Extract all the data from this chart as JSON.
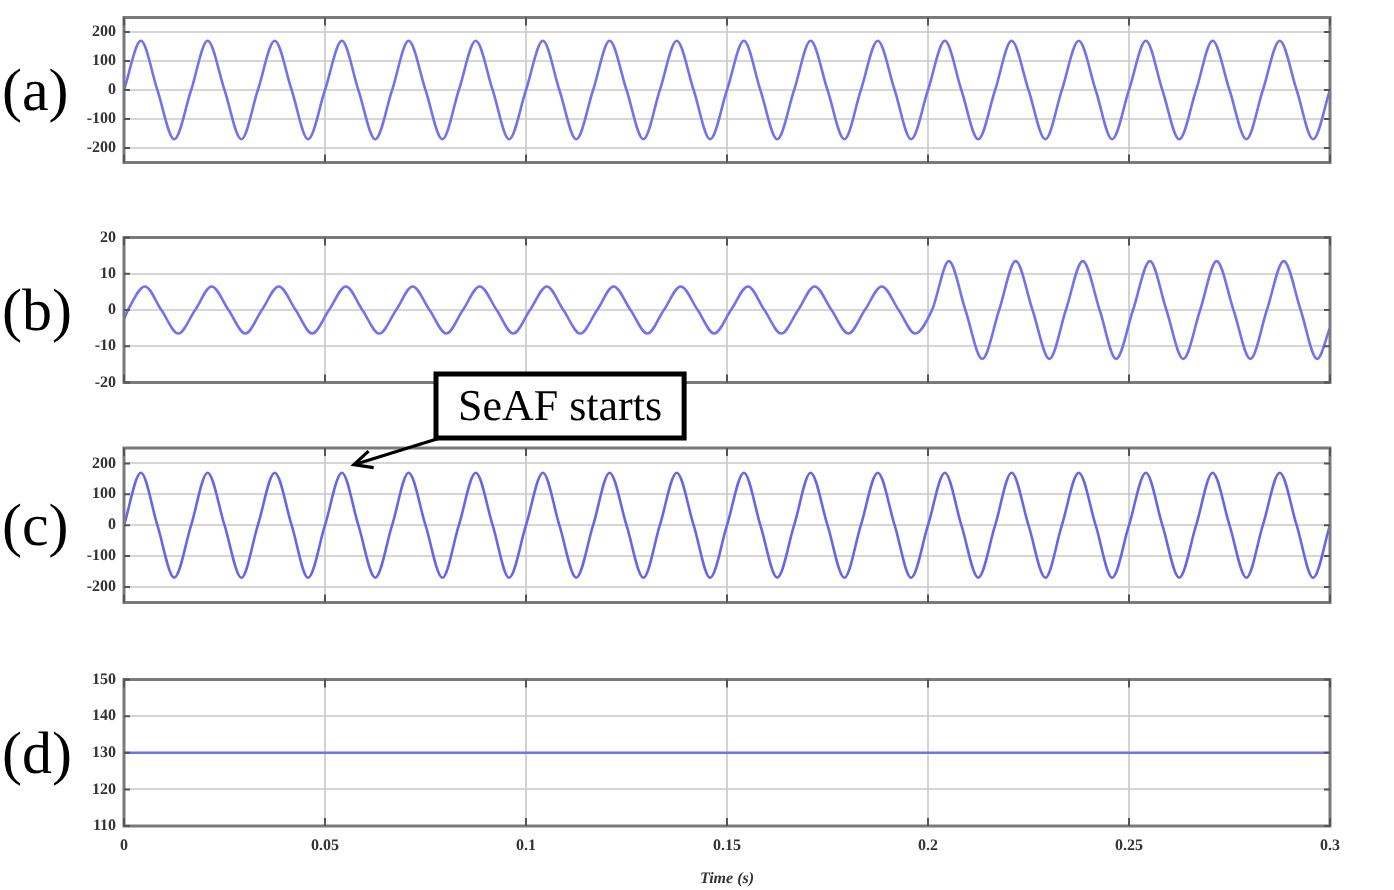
{
  "chart_data": [
    {
      "type": "line",
      "title": "(a)",
      "color": "#7272ee",
      "xlim": [
        0,
        0.3
      ],
      "xticks": [
        0,
        0.05,
        0.1,
        0.15,
        0.2,
        0.25,
        0.3
      ],
      "ylim": [
        -250,
        250
      ],
      "yticks": [
        -200,
        -100,
        0,
        100,
        200
      ],
      "grid": true,
      "tick_labels": "y",
      "x": [
        0,
        0.0042,
        0.0083,
        0.0125,
        0.0167,
        0.0208,
        0.025,
        0.0292,
        0.0333,
        0.0375,
        0.0417,
        0.0458,
        0.05,
        0.0542,
        0.0583,
        0.0625,
        0.0667,
        0.0708,
        0.075,
        0.0792,
        0.0833,
        0.0875,
        0.0917,
        0.0958,
        0.1,
        0.1042,
        0.1083,
        0.1125,
        0.1167,
        0.1208,
        0.125,
        0.1292,
        0.1333,
        0.1375,
        0.1417,
        0.1458,
        0.15,
        0.1542,
        0.1583,
        0.1625,
        0.1667,
        0.1708,
        0.175,
        0.1792,
        0.1833,
        0.1875,
        0.1917,
        0.1958,
        0.2,
        0.2042,
        0.2083,
        0.2125,
        0.2167,
        0.2208,
        0.225,
        0.2292,
        0.2333,
        0.2375,
        0.2417,
        0.2458,
        0.25,
        0.2542,
        0.2583,
        0.2625,
        0.2667,
        0.2708,
        0.275,
        0.2792,
        0.2833,
        0.2875,
        0.2917,
        0.2958,
        0.3
      ],
      "values": [
        0,
        170,
        0,
        -170,
        0,
        170,
        0,
        -170,
        0,
        170,
        0,
        -170,
        0,
        170,
        0,
        -170,
        0,
        170,
        0,
        -170,
        0,
        170,
        0,
        -170,
        0,
        170,
        0,
        -170,
        0,
        170,
        0,
        -170,
        0,
        170,
        0,
        -170,
        0,
        170,
        0,
        -170,
        0,
        170,
        0,
        -170,
        0,
        170,
        0,
        -170,
        0,
        170,
        0,
        -170,
        0,
        170,
        0,
        -170,
        0,
        170,
        0,
        -170,
        0,
        170,
        0,
        -170,
        0,
        170,
        0,
        -170,
        0,
        170,
        0,
        -170,
        0
      ]
    },
    {
      "type": "line",
      "title": "(b)",
      "color": "#7272ee",
      "xlim": [
        0,
        0.3
      ],
      "xticks": [
        0,
        0.05,
        0.1,
        0.15,
        0.2,
        0.25,
        0.3
      ],
      "ylim": [
        -20,
        20
      ],
      "yticks": [
        -20,
        -10,
        0,
        10,
        20
      ],
      "grid": true,
      "tick_labels": "y",
      "x": [
        0,
        0.001,
        0.0052,
        0.0093,
        0.0135,
        0.0177,
        0.0218,
        0.026,
        0.0302,
        0.0343,
        0.0385,
        0.0427,
        0.0468,
        0.051,
        0.0552,
        0.0593,
        0.0635,
        0.0677,
        0.0718,
        0.076,
        0.0802,
        0.0843,
        0.0885,
        0.0927,
        0.0968,
        0.101,
        0.1052,
        0.1093,
        0.1135,
        0.1177,
        0.1218,
        0.126,
        0.1302,
        0.1343,
        0.1385,
        0.1427,
        0.1468,
        0.151,
        0.1552,
        0.1593,
        0.1635,
        0.1677,
        0.1718,
        0.176,
        0.1802,
        0.1843,
        0.1885,
        0.1927,
        0.1968,
        0.201,
        0.2052,
        0.2093,
        0.2135,
        0.2177,
        0.2218,
        0.226,
        0.2302,
        0.2343,
        0.2385,
        0.2427,
        0.2468,
        0.251,
        0.2552,
        0.2593,
        0.2635,
        0.2677,
        0.2718,
        0.276,
        0.2802,
        0.2843,
        0.2885,
        0.2927,
        0.2968,
        0.3
      ],
      "values": [
        -2.5,
        0,
        6.5,
        0,
        -6.5,
        0,
        6.5,
        0,
        -6.5,
        0,
        6.5,
        0,
        -6.5,
        0,
        6.5,
        0,
        -6.5,
        0,
        6.5,
        0,
        -6.5,
        0,
        6.5,
        0,
        -6.5,
        0,
        6.5,
        0,
        -6.5,
        0,
        6.5,
        0,
        -6.5,
        0,
        6.5,
        0,
        -6.5,
        0,
        6.5,
        0,
        -6.5,
        0,
        6.5,
        0,
        -6.5,
        0,
        6.5,
        0,
        -6.5,
        0,
        13.5,
        0,
        -13.5,
        0,
        13.5,
        0,
        -13.5,
        0,
        13.5,
        0,
        -13.5,
        0,
        13.5,
        0,
        -13.5,
        0,
        13.5,
        0,
        -13.5,
        0,
        13.5,
        0,
        -13.5,
        -5
      ]
    },
    {
      "type": "line",
      "title": "(c)",
      "color": "#6666ea",
      "xlim": [
        0,
        0.3
      ],
      "xticks": [
        0,
        0.05,
        0.1,
        0.15,
        0.2,
        0.25,
        0.3
      ],
      "ylim": [
        -250,
        250
      ],
      "yticks": [
        -200,
        -100,
        0,
        100,
        200
      ],
      "grid": true,
      "tick_labels": "y",
      "annotations": [
        {
          "text": "SeAF starts",
          "x": 0.0542,
          "y": 170
        }
      ],
      "x": [
        0,
        0.0042,
        0.0083,
        0.0125,
        0.0167,
        0.0208,
        0.025,
        0.0292,
        0.0333,
        0.0375,
        0.0417,
        0.0458,
        0.05,
        0.0542,
        0.0583,
        0.0625,
        0.0667,
        0.0708,
        0.075,
        0.0792,
        0.0833,
        0.0875,
        0.0917,
        0.0958,
        0.1,
        0.1042,
        0.1083,
        0.1125,
        0.1167,
        0.1208,
        0.125,
        0.1292,
        0.1333,
        0.1375,
        0.1417,
        0.1458,
        0.15,
        0.1542,
        0.1583,
        0.1625,
        0.1667,
        0.1708,
        0.175,
        0.1792,
        0.1833,
        0.1875,
        0.1917,
        0.1958,
        0.2,
        0.2042,
        0.2083,
        0.2125,
        0.2167,
        0.2208,
        0.225,
        0.2292,
        0.2333,
        0.2375,
        0.2417,
        0.2458,
        0.25,
        0.2542,
        0.2583,
        0.2625,
        0.2667,
        0.2708,
        0.275,
        0.2792,
        0.2833,
        0.2875,
        0.2917,
        0.2958,
        0.3
      ],
      "values": [
        0,
        170,
        0,
        -170,
        0,
        170,
        0,
        -170,
        0,
        170,
        0,
        -170,
        0,
        170,
        0,
        -170,
        0,
        170,
        0,
        -170,
        0,
        170,
        0,
        -170,
        0,
        170,
        0,
        -170,
        0,
        170,
        0,
        -170,
        0,
        170,
        0,
        -170,
        0,
        170,
        0,
        -170,
        0,
        170,
        0,
        -170,
        0,
        170,
        0,
        -170,
        0,
        170,
        0,
        -170,
        0,
        170,
        0,
        -170,
        0,
        170,
        0,
        -170,
        0,
        170,
        0,
        -170,
        0,
        170,
        0,
        -170,
        0,
        170,
        0,
        -170,
        0
      ]
    },
    {
      "type": "line",
      "title": "(d)",
      "xlabel": "Time (s)",
      "color": "#7272ee",
      "xlim": [
        0,
        0.3
      ],
      "xticks": [
        0,
        0.05,
        0.1,
        0.15,
        0.2,
        0.25,
        0.3
      ],
      "ylim": [
        110,
        150
      ],
      "yticks": [
        110,
        120,
        130,
        140,
        150
      ],
      "grid": true,
      "x": [
        0,
        0.3
      ],
      "values": [
        130,
        130
      ]
    }
  ]
}
